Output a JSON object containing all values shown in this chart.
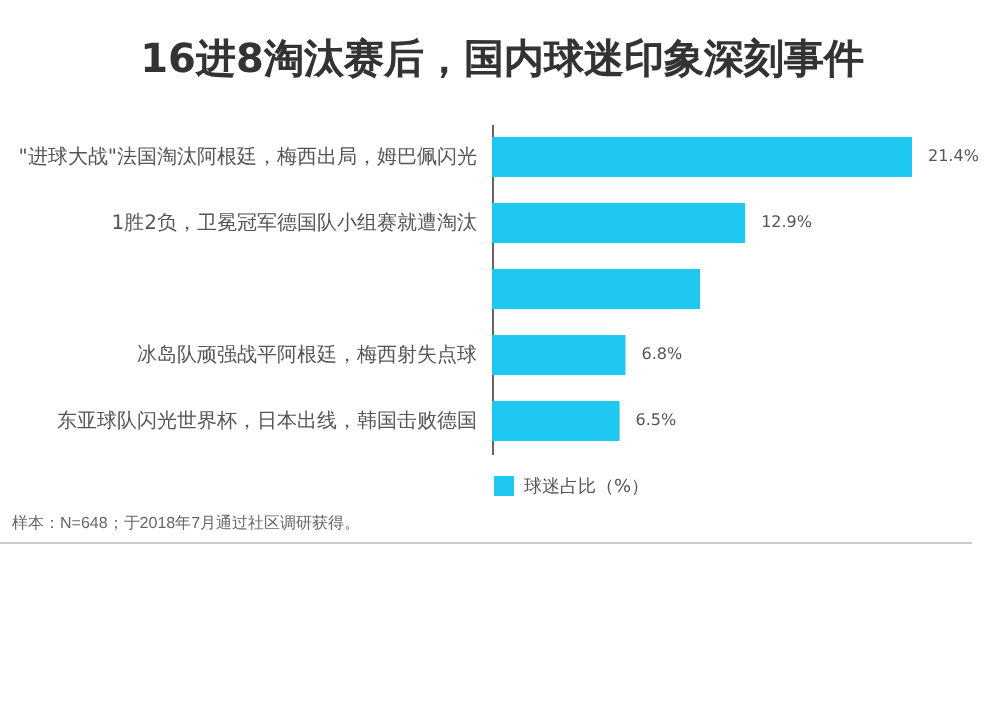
{
  "chart_data": {
    "type": "bar",
    "orientation": "horizontal",
    "title": "16进8淘汰赛后，国内球迷印象深刻事件",
    "categories": [
      "\"进球大战\"法国淘汰阿根廷，梅西出局，姆巴佩闪光",
      "1胜2负，卫冕冠军德国队小组赛就遭淘汰",
      null,
      "冰岛队顽强战平阿根廷，梅西射失点球",
      "东亚球队闪光世界杯，日本出线，韩国击败德国"
    ],
    "series": [
      {
        "name": "球迷占比（%）",
        "color": "#1fc8f0",
        "values": [
          21.4,
          12.9,
          10.6,
          6.8,
          6.5
        ],
        "value_labels": [
          "21.4%",
          "12.9%",
          null,
          "6.8%",
          "6.5%"
        ]
      }
    ],
    "legend": "bottom",
    "annotations": [
      "样本：N=648；于2018年7月通过社区调研获得。"
    ]
  }
}
